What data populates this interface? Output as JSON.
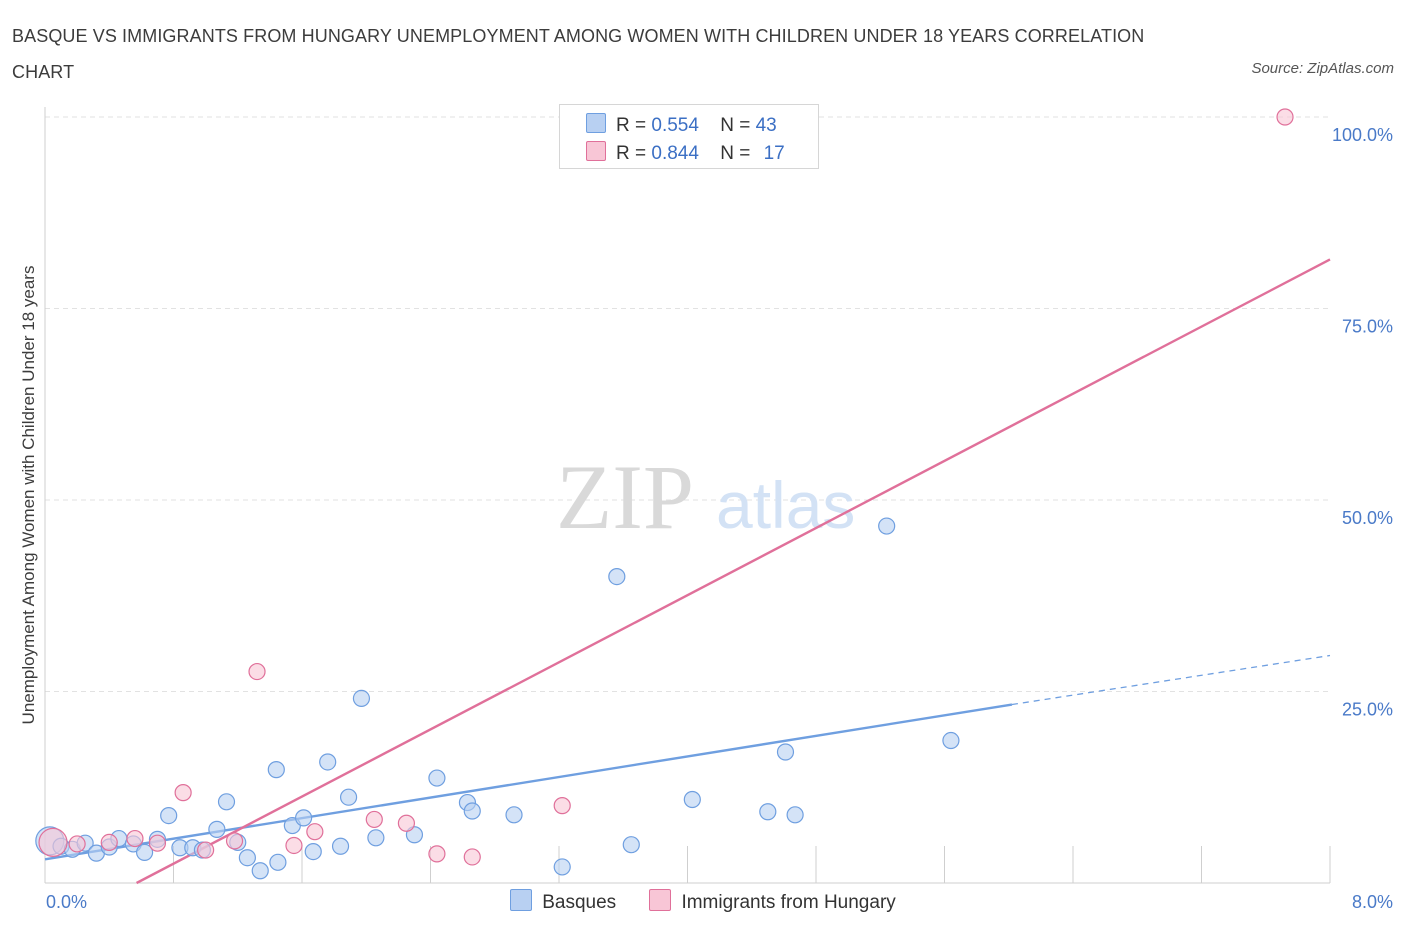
{
  "chart_data": {
    "type": "scatter",
    "title": "BASQUE VS IMMIGRANTS FROM HUNGARY UNEMPLOYMENT AMONG WOMEN WITH CHILDREN UNDER 18 YEARS CORRELATION CHART",
    "source": "Source: ZipAtlas.com",
    "xlabel": "",
    "ylabel": "Unemployment Among Women with Children Under 18 years",
    "xlim": [
      0,
      8
    ],
    "ylim": [
      0,
      100
    ],
    "x_tick_labels": [
      "0.0%",
      "8.0%"
    ],
    "y_ticks": [
      25,
      50,
      75,
      100
    ],
    "y_tick_labels": [
      "25.0%",
      "50.0%",
      "75.0%",
      "100.0%"
    ],
    "grid": true,
    "watermark": {
      "zip": "ZIP",
      "atlas": "atlas"
    },
    "series": [
      {
        "name": "Basques",
        "color": "#6f9fe0",
        "fill": "#b8d0f2",
        "R": "0.554",
        "N": "43",
        "points": [
          [
            0.03,
            5.5
          ],
          [
            0.1,
            4.8
          ],
          [
            0.17,
            4.4
          ],
          [
            0.25,
            5.2
          ],
          [
            0.32,
            3.9
          ],
          [
            0.4,
            4.7
          ],
          [
            0.46,
            5.8
          ],
          [
            0.55,
            5.1
          ],
          [
            0.62,
            4.0
          ],
          [
            0.7,
            5.7
          ],
          [
            0.77,
            8.8
          ],
          [
            0.84,
            4.6
          ],
          [
            0.92,
            4.6
          ],
          [
            0.98,
            4.3
          ],
          [
            1.07,
            7.0
          ],
          [
            1.13,
            10.6
          ],
          [
            1.2,
            5.3
          ],
          [
            1.26,
            3.3
          ],
          [
            1.34,
            1.6
          ],
          [
            1.44,
            14.8
          ],
          [
            1.45,
            2.7
          ],
          [
            1.54,
            7.5
          ],
          [
            1.61,
            8.5
          ],
          [
            1.67,
            4.1
          ],
          [
            1.76,
            15.8
          ],
          [
            1.84,
            4.8
          ],
          [
            1.89,
            11.2
          ],
          [
            1.97,
            24.1
          ],
          [
            2.06,
            5.9
          ],
          [
            2.3,
            6.3
          ],
          [
            2.44,
            13.7
          ],
          [
            2.63,
            10.5
          ],
          [
            2.66,
            9.4
          ],
          [
            2.92,
            8.9
          ],
          [
            3.22,
            2.1
          ],
          [
            3.56,
            40.0
          ],
          [
            3.65,
            5.0
          ],
          [
            4.03,
            10.9
          ],
          [
            4.5,
            9.3
          ],
          [
            4.61,
            17.1
          ],
          [
            4.67,
            8.9
          ],
          [
            5.24,
            46.6
          ],
          [
            5.64,
            18.6
          ]
        ],
        "trend": {
          "x0": 0,
          "y0": 3.1,
          "x1": 6.02,
          "y1": 23.3,
          "dash_x1": 8,
          "dash_y1": 29.7
        }
      },
      {
        "name": "Immigrants from Hungary",
        "color": "#e0709a",
        "fill": "#f8c6d6",
        "R": "0.844",
        "N": "17",
        "points": [
          [
            0.05,
            5.3
          ],
          [
            0.2,
            5.1
          ],
          [
            0.4,
            5.3
          ],
          [
            0.56,
            5.8
          ],
          [
            0.7,
            5.2
          ],
          [
            0.86,
            11.8
          ],
          [
            1.0,
            4.3
          ],
          [
            1.18,
            5.5
          ],
          [
            1.32,
            27.6
          ],
          [
            1.55,
            4.9
          ],
          [
            1.68,
            6.7
          ],
          [
            2.05,
            8.3
          ],
          [
            2.25,
            7.8
          ],
          [
            2.44,
            3.8
          ],
          [
            2.66,
            3.4
          ],
          [
            3.22,
            10.1
          ],
          [
            7.72,
            100.0
          ]
        ],
        "trend": {
          "x0": 0.57,
          "y0": 0,
          "x1": 8,
          "y1": 81.4
        }
      }
    ]
  },
  "legend": {
    "r_label": "R =",
    "n_label": "N ="
  }
}
